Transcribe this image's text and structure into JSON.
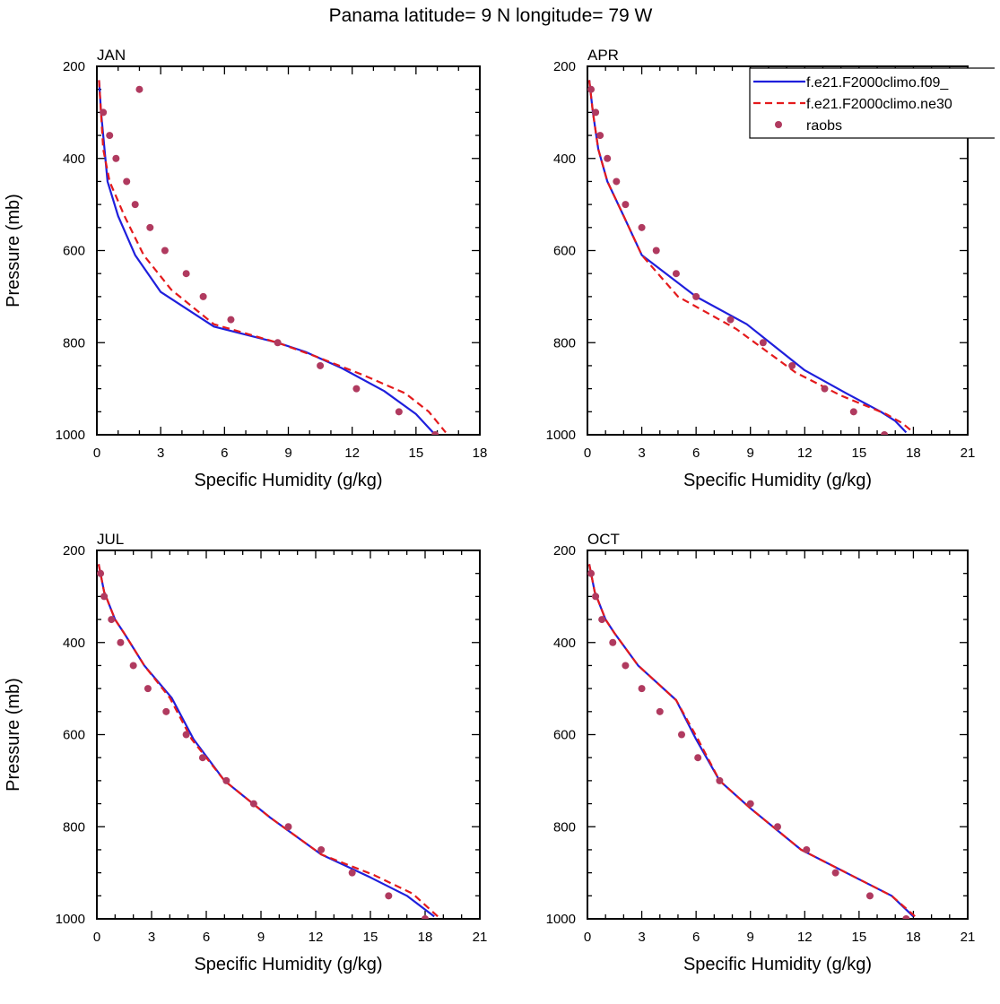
{
  "figure_title": "Panama  latitude= 9 N longitude= 79 W",
  "legend": {
    "entries": [
      {
        "label": "f.e21.F2000climo.f09_",
        "color": "#1f1fdc",
        "style": "solid"
      },
      {
        "label": "f.e21.F2000climo.ne30",
        "color": "#e41a1c",
        "style": "dashed"
      },
      {
        "label": "raobs",
        "color": "#b03a5f",
        "style": "marker"
      }
    ]
  },
  "chart_data": [
    {
      "type": "line",
      "title": "JAN",
      "xlabel": "Specific Humidity (g/kg)",
      "ylabel": "Pressure (mb)",
      "xlim": [
        0,
        18
      ],
      "xticks": [
        "0",
        "3",
        "6",
        "9",
        "12",
        "15",
        "18"
      ],
      "ylim": [
        200,
        1000
      ],
      "yticks": [
        "200",
        "400",
        "600",
        "800",
        "1000"
      ],
      "y_inverted": true,
      "series": [
        {
          "name": "f.e21.F2000climo.f09_",
          "color": "#1f1fdc",
          "style": "solid",
          "x": [
            0.1,
            0.2,
            0.5,
            1.0,
            1.8,
            3.0,
            5.5,
            8.5,
            9.8,
            11.5,
            13.5,
            15.0,
            15.9
          ],
          "y": [
            230,
            300,
            450,
            525,
            610,
            690,
            765,
            800,
            820,
            855,
            905,
            955,
            1000
          ]
        },
        {
          "name": "f.e21.F2000climo.ne30",
          "color": "#e41a1c",
          "style": "dashed",
          "x": [
            0.1,
            0.3,
            0.6,
            1.3,
            2.2,
            3.5,
            5.5,
            8.5,
            10.3,
            12.5,
            14.5,
            15.6,
            16.4
          ],
          "y": [
            230,
            380,
            450,
            525,
            610,
            685,
            760,
            800,
            830,
            870,
            910,
            950,
            995
          ]
        },
        {
          "name": "raobs",
          "color": "#b03a5f",
          "style": "marker",
          "x": [
            2.0,
            0.3,
            0.6,
            0.9,
            1.4,
            1.8,
            2.5,
            3.2,
            4.2,
            5.0,
            6.3,
            8.5,
            10.5,
            12.2,
            14.2,
            15.9
          ],
          "y": [
            250,
            300,
            350,
            400,
            450,
            500,
            550,
            600,
            650,
            700,
            750,
            800,
            850,
            900,
            950,
            1000
          ]
        }
      ]
    },
    {
      "type": "line",
      "title": "APR",
      "xlabel": "Specific Humidity (g/kg)",
      "ylabel": "",
      "xlim": [
        0,
        21
      ],
      "xticks": [
        "0",
        "3",
        "6",
        "9",
        "12",
        "15",
        "18",
        "21"
      ],
      "ylim": [
        200,
        1000
      ],
      "yticks": [
        "200",
        "400",
        "600",
        "800",
        "1000"
      ],
      "y_inverted": true,
      "series": [
        {
          "name": "f.e21.F2000climo.f09_",
          "color": "#1f1fdc",
          "style": "solid",
          "x": [
            0.1,
            0.3,
            0.6,
            1.1,
            2.0,
            3.0,
            6.0,
            8.8,
            12.0,
            14.3,
            16.2,
            17.0,
            17.6
          ],
          "y": [
            230,
            300,
            380,
            450,
            525,
            610,
            700,
            760,
            860,
            910,
            950,
            970,
            995
          ]
        },
        {
          "name": "f.e21.F2000climo.ne30",
          "color": "#e41a1c",
          "style": "dashed",
          "x": [
            0.1,
            0.3,
            0.6,
            1.1,
            2.0,
            3.0,
            5.0,
            8.2,
            11.5,
            14.0,
            16.5,
            17.4,
            18.0
          ],
          "y": [
            230,
            300,
            380,
            450,
            525,
            610,
            700,
            770,
            865,
            915,
            955,
            975,
            995
          ]
        },
        {
          "name": "raobs",
          "color": "#b03a5f",
          "style": "marker",
          "x": [
            0.2,
            0.45,
            0.7,
            1.1,
            1.6,
            2.1,
            3.0,
            3.8,
            4.9,
            6.0,
            7.9,
            9.7,
            11.3,
            13.1,
            14.7,
            16.4
          ],
          "y": [
            250,
            300,
            350,
            400,
            450,
            500,
            550,
            600,
            650,
            700,
            750,
            800,
            850,
            900,
            950,
            1000
          ]
        }
      ]
    },
    {
      "type": "line",
      "title": "JUL",
      "xlabel": "Specific Humidity (g/kg)",
      "ylabel": "Pressure (mb)",
      "xlim": [
        0,
        21
      ],
      "xticks": [
        "0",
        "3",
        "6",
        "9",
        "12",
        "15",
        "18",
        "21"
      ],
      "ylim": [
        200,
        1000
      ],
      "yticks": [
        "200",
        "400",
        "600",
        "800",
        "1000"
      ],
      "y_inverted": true,
      "series": [
        {
          "name": "f.e21.F2000climo.f09_",
          "color": "#1f1fdc",
          "style": "solid",
          "x": [
            0.1,
            0.4,
            1.0,
            1.5,
            2.6,
            4.1,
            5.3,
            7.0,
            9.5,
            12.3,
            15.0,
            17.0,
            18.5
          ],
          "y": [
            230,
            290,
            350,
            380,
            450,
            520,
            610,
            700,
            780,
            860,
            910,
            950,
            995
          ]
        },
        {
          "name": "f.e21.F2000climo.ne30",
          "color": "#e41a1c",
          "style": "dashed",
          "x": [
            0.1,
            0.4,
            1.0,
            1.5,
            2.6,
            4.0,
            5.2,
            7.0,
            9.5,
            12.3,
            15.2,
            17.3,
            18.7
          ],
          "y": [
            230,
            290,
            350,
            380,
            450,
            520,
            610,
            700,
            780,
            860,
            905,
            945,
            995
          ]
        },
        {
          "name": "raobs",
          "color": "#b03a5f",
          "style": "marker",
          "x": [
            0.2,
            0.4,
            0.8,
            1.3,
            2.0,
            2.8,
            3.8,
            4.9,
            5.8,
            7.1,
            8.6,
            10.5,
            12.3,
            14.0,
            16.0,
            18.0
          ],
          "y": [
            250,
            300,
            350,
            400,
            450,
            500,
            550,
            600,
            650,
            700,
            750,
            800,
            850,
            900,
            950,
            1000
          ]
        }
      ]
    },
    {
      "type": "line",
      "title": "OCT",
      "xlabel": "Specific Humidity (g/kg)",
      "ylabel": "",
      "xlim": [
        0,
        21
      ],
      "xticks": [
        "0",
        "3",
        "6",
        "9",
        "12",
        "15",
        "18",
        "21"
      ],
      "ylim": [
        200,
        1000
      ],
      "yticks": [
        "200",
        "400",
        "600",
        "800",
        "1000"
      ],
      "y_inverted": true,
      "series": [
        {
          "name": "f.e21.F2000climo.f09_",
          "color": "#1f1fdc",
          "style": "solid",
          "x": [
            0.1,
            0.4,
            1.0,
            1.5,
            2.8,
            4.9,
            6.0,
            7.3,
            9.0,
            11.8,
            14.8,
            16.8,
            18.0
          ],
          "y": [
            230,
            290,
            350,
            380,
            450,
            525,
            610,
            700,
            760,
            850,
            910,
            950,
            995
          ]
        },
        {
          "name": "f.e21.F2000climo.ne30",
          "color": "#e41a1c",
          "style": "dashed",
          "x": [
            0.1,
            0.4,
            1.0,
            1.5,
            2.8,
            4.9,
            6.1,
            7.3,
            9.0,
            11.8,
            14.8,
            16.8,
            18.1
          ],
          "y": [
            230,
            290,
            350,
            380,
            450,
            525,
            610,
            700,
            760,
            850,
            910,
            950,
            995
          ]
        },
        {
          "name": "raobs",
          "color": "#b03a5f",
          "style": "marker",
          "x": [
            0.2,
            0.45,
            0.8,
            1.4,
            2.1,
            3.0,
            4.0,
            5.2,
            6.1,
            7.3,
            9.0,
            10.5,
            12.1,
            13.7,
            15.6,
            17.6
          ],
          "y": [
            250,
            300,
            350,
            400,
            450,
            500,
            550,
            600,
            650,
            700,
            750,
            800,
            850,
            900,
            950,
            1000
          ]
        }
      ]
    }
  ]
}
